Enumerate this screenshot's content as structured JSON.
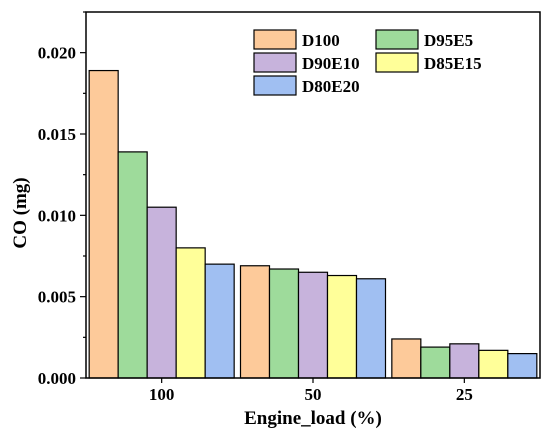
{
  "chart_data": {
    "type": "bar",
    "categories": [
      "100",
      "50",
      "25"
    ],
    "series": [
      {
        "name": "D100",
        "color": "#FDCA9A",
        "values": [
          0.0189,
          0.0069,
          0.0024
        ]
      },
      {
        "name": "D95E5",
        "color": "#9EDB9B",
        "values": [
          0.0139,
          0.0067,
          0.0019
        ]
      },
      {
        "name": "D90E10",
        "color": "#C7B3DC",
        "values": [
          0.0105,
          0.0065,
          0.0021
        ]
      },
      {
        "name": "D85E15",
        "color": "#FFFF99",
        "values": [
          0.008,
          0.0063,
          0.0017
        ]
      },
      {
        "name": "D80E20",
        "color": "#A0BFF2",
        "values": [
          0.007,
          0.0061,
          0.0015
        ]
      }
    ],
    "xlabel": "Engine_load (%)",
    "ylabel": "CO (mg)",
    "ylim": [
      0,
      0.0225
    ],
    "yticks": [
      0.0,
      0.005,
      0.01,
      0.015,
      0.02
    ],
    "ytick_labels": [
      "0.000",
      "0.005",
      "0.010",
      "0.015",
      "0.020"
    ],
    "grid": false,
    "legend_position": "top-right"
  }
}
